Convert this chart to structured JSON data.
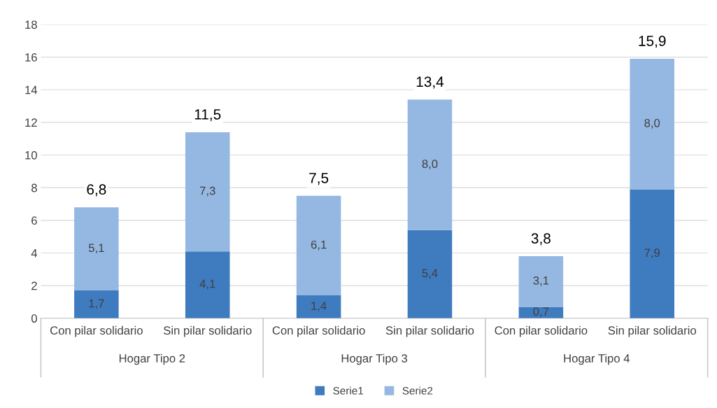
{
  "chart_data": {
    "type": "bar",
    "stacked": true,
    "categories": [
      "Con pilar solidario",
      "Sin pilar solidario",
      "Con pilar solidario",
      "Sin pilar solidario",
      "Con pilar solidario",
      "Sin pilar solidario"
    ],
    "annotations": [
      "Hogar Tipo 2",
      "Hogar Tipo 3",
      "Hogar Tipo 4"
    ],
    "series": [
      {
        "name": "Serie1",
        "color": "#3f7bbf",
        "values": [
          1.7,
          4.1,
          1.4,
          5.4,
          0.7,
          7.9
        ],
        "value_labels": [
          "1,7",
          "4,1",
          "1,4",
          "5,4",
          "0,7",
          "7,9"
        ]
      },
      {
        "name": "Serie2",
        "color": "#95b8e2",
        "values": [
          5.1,
          7.3,
          6.1,
          8.0,
          3.1,
          8.0
        ],
        "value_labels": [
          "5,1",
          "7,3",
          "6,1",
          "8,0",
          "3,1",
          "8,0"
        ]
      }
    ],
    "totals": [
      "6,8",
      "11,5",
      "7,5",
      "13,4",
      "3,8",
      "15,9"
    ],
    "ylim": [
      0,
      18
    ],
    "yticks": [
      0,
      2,
      4,
      6,
      8,
      10,
      12,
      14,
      16,
      18
    ],
    "grid": "y",
    "legend": "bottom"
  }
}
